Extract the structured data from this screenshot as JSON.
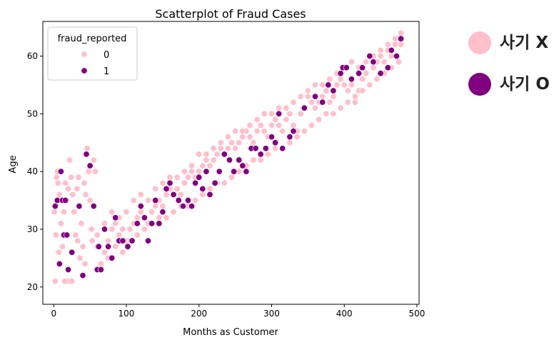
{
  "chart_data": {
    "type": "scatter",
    "title": "Scatterplot of Fraud Cases",
    "xlabel": "Months as Customer",
    "ylabel": "Age",
    "xlim": [
      -15,
      503
    ],
    "ylim": [
      17,
      66
    ],
    "xticks": [
      0,
      100,
      200,
      300,
      400,
      500
    ],
    "yticks": [
      20,
      30,
      40,
      50,
      60
    ],
    "grid": false,
    "legend": {
      "title": "fraud_reported",
      "placement": "top-left"
    },
    "series": [
      {
        "name": "0",
        "color": "#FFC0CB",
        "points": [
          [
            1,
            33
          ],
          [
            3,
            29
          ],
          [
            5,
            40
          ],
          [
            6,
            38
          ],
          [
            8,
            36
          ],
          [
            10,
            31
          ],
          [
            12,
            27
          ],
          [
            14,
            33
          ],
          [
            16,
            38
          ],
          [
            18,
            35
          ],
          [
            20,
            21
          ],
          [
            22,
            42
          ],
          [
            24,
            39
          ],
          [
            26,
            36
          ],
          [
            28,
            33
          ],
          [
            30,
            29
          ],
          [
            32,
            37
          ],
          [
            34,
            39
          ],
          [
            36,
            25
          ],
          [
            38,
            31
          ],
          [
            40,
            27
          ],
          [
            42,
            38
          ],
          [
            44,
            36
          ],
          [
            46,
            44
          ],
          [
            48,
            40
          ],
          [
            50,
            35
          ],
          [
            52,
            30
          ],
          [
            55,
            42
          ],
          [
            57,
            40
          ],
          [
            2,
            21
          ],
          [
            4,
            39
          ],
          [
            7,
            26
          ],
          [
            15,
            21
          ],
          [
            25,
            21
          ],
          [
            33,
            28
          ],
          [
            43,
            24
          ],
          [
            53,
            28
          ],
          [
            60,
            29
          ],
          [
            20,
            37
          ],
          [
            60,
            27
          ],
          [
            70,
            26
          ],
          [
            75,
            28
          ],
          [
            80,
            30
          ],
          [
            85,
            31
          ],
          [
            90,
            29
          ],
          [
            95,
            30
          ],
          [
            100,
            28
          ],
          [
            105,
            30
          ],
          [
            110,
            31
          ],
          [
            115,
            32
          ],
          [
            120,
            33
          ],
          [
            125,
            32
          ],
          [
            130,
            31
          ],
          [
            135,
            33
          ],
          [
            140,
            34
          ],
          [
            145,
            35
          ],
          [
            150,
            34
          ],
          [
            155,
            36
          ],
          [
            160,
            37
          ],
          [
            165,
            36
          ],
          [
            170,
            37
          ],
          [
            175,
            36
          ],
          [
            180,
            38
          ],
          [
            185,
            39
          ],
          [
            190,
            40
          ],
          [
            195,
            39
          ],
          [
            200,
            40
          ],
          [
            205,
            41
          ],
          [
            210,
            42
          ],
          [
            215,
            41
          ],
          [
            220,
            42
          ],
          [
            225,
            43
          ],
          [
            230,
            44
          ],
          [
            235,
            43
          ],
          [
            240,
            44
          ],
          [
            245,
            45
          ],
          [
            250,
            44
          ],
          [
            255,
            45
          ],
          [
            260,
            46
          ],
          [
            265,
            47
          ],
          [
            270,
            46
          ],
          [
            275,
            45
          ],
          [
            280,
            47
          ],
          [
            285,
            48
          ],
          [
            290,
            47
          ],
          [
            295,
            46
          ],
          [
            300,
            48
          ],
          [
            305,
            49
          ],
          [
            310,
            48
          ],
          [
            315,
            47
          ],
          [
            320,
            49
          ],
          [
            325,
            50
          ],
          [
            330,
            48
          ],
          [
            335,
            47
          ],
          [
            340,
            50
          ],
          [
            345,
            51
          ],
          [
            350,
            53
          ],
          [
            355,
            52
          ],
          [
            360,
            51
          ],
          [
            365,
            52
          ],
          [
            370,
            53
          ],
          [
            375,
            54
          ],
          [
            380,
            52
          ],
          [
            385,
            53
          ],
          [
            390,
            55
          ],
          [
            395,
            56
          ],
          [
            400,
            55
          ],
          [
            405,
            54
          ],
          [
            410,
            55
          ],
          [
            415,
            52
          ],
          [
            420,
            54
          ],
          [
            425,
            56
          ],
          [
            430,
            57
          ],
          [
            435,
            55
          ],
          [
            440,
            58
          ],
          [
            445,
            59
          ],
          [
            450,
            60
          ],
          [
            455,
            59
          ],
          [
            460,
            61
          ],
          [
            465,
            60
          ],
          [
            470,
            62
          ],
          [
            475,
            63
          ],
          [
            478,
            62
          ],
          [
            65,
            24
          ],
          [
            75,
            25
          ],
          [
            85,
            27
          ],
          [
            95,
            26
          ],
          [
            105,
            28
          ],
          [
            115,
            29
          ],
          [
            125,
            30
          ],
          [
            135,
            31
          ],
          [
            145,
            32
          ],
          [
            155,
            32
          ],
          [
            165,
            33
          ],
          [
            175,
            34
          ],
          [
            185,
            34
          ],
          [
            195,
            35
          ],
          [
            205,
            36
          ],
          [
            215,
            37
          ],
          [
            225,
            38
          ],
          [
            235,
            38
          ],
          [
            245,
            39
          ],
          [
            255,
            40
          ],
          [
            265,
            41
          ],
          [
            275,
            42
          ],
          [
            285,
            42
          ],
          [
            295,
            43
          ],
          [
            305,
            44
          ],
          [
            315,
            44
          ],
          [
            325,
            45
          ],
          [
            335,
            46
          ],
          [
            345,
            47
          ],
          [
            355,
            48
          ],
          [
            365,
            49
          ],
          [
            375,
            50
          ],
          [
            385,
            50
          ],
          [
            395,
            51
          ],
          [
            405,
            52
          ],
          [
            415,
            53
          ],
          [
            425,
            54
          ],
          [
            435,
            55
          ],
          [
            445,
            56
          ],
          [
            455,
            57
          ],
          [
            465,
            58
          ],
          [
            475,
            59
          ],
          [
            70,
            31
          ],
          [
            80,
            33
          ],
          [
            90,
            32
          ],
          [
            100,
            33
          ],
          [
            110,
            35
          ],
          [
            120,
            36
          ],
          [
            130,
            35
          ],
          [
            140,
            37
          ],
          [
            150,
            38
          ],
          [
            160,
            39
          ],
          [
            170,
            39
          ],
          [
            180,
            40
          ],
          [
            190,
            41
          ],
          [
            200,
            43
          ],
          [
            210,
            43
          ],
          [
            220,
            44
          ],
          [
            230,
            45
          ],
          [
            240,
            46
          ],
          [
            250,
            47
          ],
          [
            260,
            47
          ],
          [
            270,
            48
          ],
          [
            280,
            49
          ],
          [
            290,
            50
          ],
          [
            300,
            50
          ],
          [
            310,
            51
          ],
          [
            320,
            51
          ],
          [
            330,
            52
          ],
          [
            340,
            53
          ],
          [
            350,
            54
          ],
          [
            360,
            55
          ],
          [
            370,
            55
          ],
          [
            380,
            56
          ],
          [
            390,
            57
          ],
          [
            400,
            58
          ],
          [
            410,
            59
          ],
          [
            420,
            58
          ],
          [
            430,
            59
          ],
          [
            440,
            60
          ],
          [
            450,
            61
          ],
          [
            460,
            62
          ],
          [
            470,
            63
          ],
          [
            478,
            64
          ]
        ]
      },
      {
        "name": "1",
        "color": "#800080",
        "points": [
          [
            2,
            34
          ],
          [
            5,
            35
          ],
          [
            8,
            24
          ],
          [
            10,
            40
          ],
          [
            12,
            35
          ],
          [
            14,
            29
          ],
          [
            16,
            35
          ],
          [
            18,
            29
          ],
          [
            20,
            23
          ],
          [
            25,
            26
          ],
          [
            35,
            34
          ],
          [
            40,
            22
          ],
          [
            45,
            43
          ],
          [
            50,
            41
          ],
          [
            55,
            34
          ],
          [
            60,
            23
          ],
          [
            62,
            27
          ],
          [
            65,
            23
          ],
          [
            70,
            30
          ],
          [
            75,
            27
          ],
          [
            80,
            25
          ],
          [
            85,
            32
          ],
          [
            90,
            28
          ],
          [
            95,
            28
          ],
          [
            102,
            27
          ],
          [
            108,
            28
          ],
          [
            115,
            31
          ],
          [
            120,
            34
          ],
          [
            125,
            32
          ],
          [
            130,
            28
          ],
          [
            135,
            31
          ],
          [
            140,
            35
          ],
          [
            145,
            31
          ],
          [
            150,
            33
          ],
          [
            155,
            37
          ],
          [
            160,
            38
          ],
          [
            165,
            36
          ],
          [
            172,
            35
          ],
          [
            178,
            34
          ],
          [
            185,
            35
          ],
          [
            190,
            34
          ],
          [
            195,
            38
          ],
          [
            200,
            39
          ],
          [
            205,
            37
          ],
          [
            210,
            40
          ],
          [
            215,
            36
          ],
          [
            222,
            38
          ],
          [
            228,
            40
          ],
          [
            235,
            43
          ],
          [
            242,
            42
          ],
          [
            248,
            40
          ],
          [
            255,
            42
          ],
          [
            260,
            41
          ],
          [
            265,
            40
          ],
          [
            272,
            44
          ],
          [
            278,
            44
          ],
          [
            285,
            43
          ],
          [
            292,
            44
          ],
          [
            300,
            46
          ],
          [
            305,
            45
          ],
          [
            310,
            50
          ],
          [
            315,
            44
          ],
          [
            325,
            46
          ],
          [
            330,
            47
          ],
          [
            345,
            51
          ],
          [
            360,
            53
          ],
          [
            370,
            52
          ],
          [
            378,
            55
          ],
          [
            385,
            54
          ],
          [
            395,
            57
          ],
          [
            398,
            58
          ],
          [
            403,
            58
          ],
          [
            410,
            56
          ],
          [
            420,
            57
          ],
          [
            425,
            58
          ],
          [
            435,
            60
          ],
          [
            440,
            59
          ],
          [
            450,
            57
          ],
          [
            460,
            58
          ],
          [
            465,
            61
          ],
          [
            472,
            60
          ],
          [
            478,
            63
          ]
        ]
      }
    ]
  },
  "side_legend": {
    "items": [
      {
        "label": "사기 X",
        "color": "#FFC0CB"
      },
      {
        "label": "사기 O",
        "color": "#800080"
      }
    ]
  }
}
